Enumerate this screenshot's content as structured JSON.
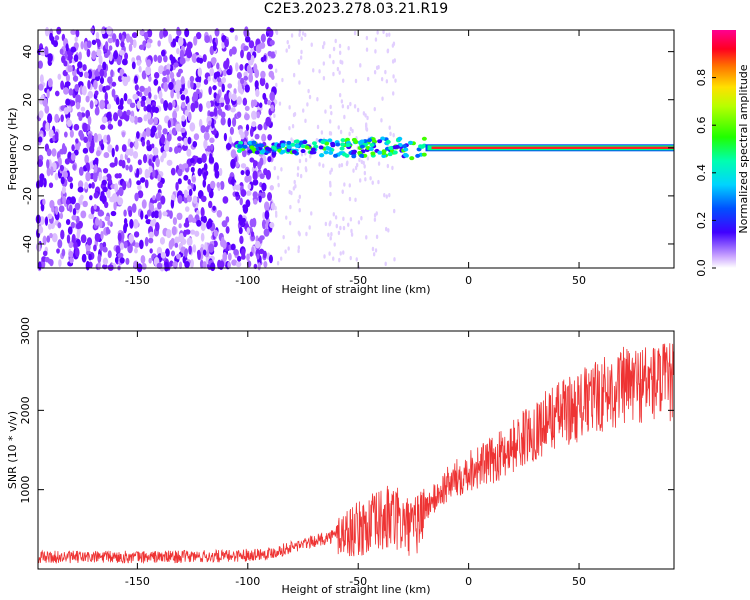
{
  "title": "C2E3.2023.278.03.21.R19",
  "chart_data": [
    {
      "type": "heatmap",
      "xlabel": "Height of straight line (km)",
      "ylabel": "Frequency (Hz)",
      "xlim": [
        -195,
        93
      ],
      "ylim": [
        -50,
        49
      ],
      "xticks": [
        -150,
        -100,
        -50,
        0,
        50
      ],
      "yticks": [
        -40,
        -20,
        0,
        20,
        40
      ],
      "colorbar": {
        "label": "Normalized spectral amplitude",
        "range": [
          0,
          1
        ],
        "ticks": [
          "0.0",
          "0.2",
          "0.4",
          "0.6",
          "0.8"
        ],
        "tick_values": [
          0,
          0.2,
          0.4,
          0.6,
          0.8
        ]
      },
      "features": {
        "noise_region_x": [
          -195,
          -88
        ],
        "signal_band_center_hz": 0,
        "strong_line_start_x": -15
      },
      "grid": false
    },
    {
      "type": "line",
      "xlabel": "Height of straight line (km)",
      "ylabel": "SNR (10 * v/v)",
      "xlim": [
        -195,
        93
      ],
      "ylim": [
        0,
        3000
      ],
      "xticks": [
        -150,
        -100,
        -50,
        0,
        50
      ],
      "yticks": [
        1000,
        2000,
        3000
      ],
      "color": "#ee3333",
      "trend": {
        "x": [
          -195,
          -150,
          -110,
          -90,
          -70,
          -50,
          -35,
          -25,
          -20,
          -10,
          0,
          10,
          20,
          30,
          40,
          50,
          60,
          70,
          80,
          93
        ],
        "y": [
          150,
          150,
          160,
          200,
          350,
          500,
          650,
          500,
          750,
          1050,
          1250,
          1350,
          1550,
          1750,
          1950,
          2050,
          2200,
          2300,
          2350,
          2350
        ]
      },
      "grid": false
    }
  ]
}
